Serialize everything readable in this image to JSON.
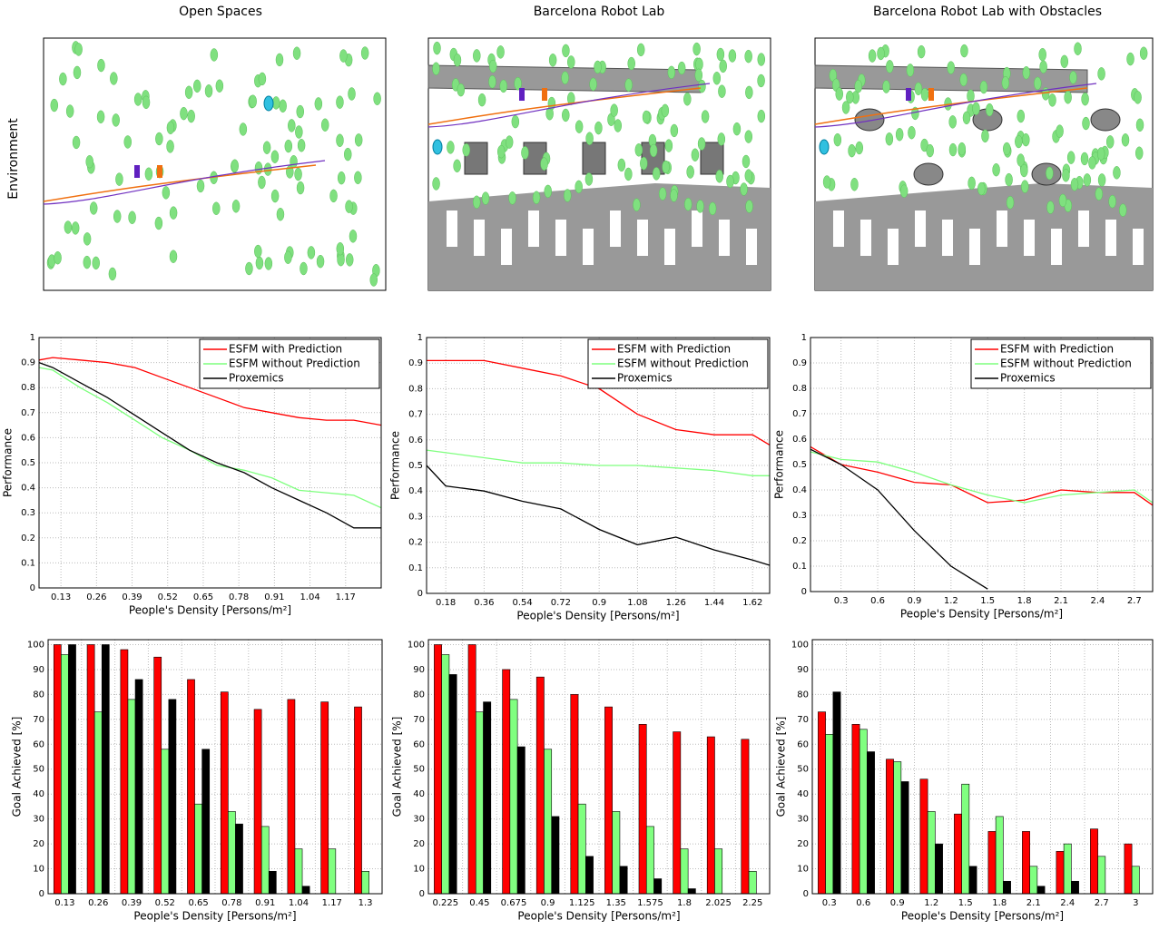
{
  "figure": {
    "column_titles": [
      "Open Spaces",
      "Barcelona Robot Lab",
      "Barcelona Robot Lab with Obstacles"
    ],
    "row_label": "Environment"
  },
  "chart_data": [
    {
      "type": "line",
      "xlabel": "People's Density [Persons/m²]",
      "ylabel": "Performance",
      "x": [
        0.05,
        0.1,
        0.2,
        0.3,
        0.4,
        0.5,
        0.6,
        0.7,
        0.8,
        0.9,
        1.0,
        1.1,
        1.2,
        1.3
      ],
      "series": [
        {
          "name": "ESFM with Prediction",
          "color": "#ff0000",
          "values": [
            0.91,
            0.92,
            0.91,
            0.9,
            0.88,
            0.84,
            0.8,
            0.76,
            0.72,
            0.7,
            0.68,
            0.67,
            0.67,
            0.65
          ]
        },
        {
          "name": "ESFM without Prediction",
          "color": "#7fff7f",
          "values": [
            0.88,
            0.87,
            0.8,
            0.74,
            0.67,
            0.6,
            0.55,
            0.49,
            0.47,
            0.44,
            0.39,
            0.38,
            0.37,
            0.32
          ]
        },
        {
          "name": "Proxemics",
          "color": "#000000",
          "values": [
            0.9,
            0.88,
            0.82,
            0.76,
            0.69,
            0.62,
            0.55,
            0.5,
            0.46,
            0.4,
            0.35,
            0.3,
            0.24,
            0.24
          ]
        }
      ],
      "xlim": [
        0.05,
        1.3
      ],
      "ylim": [
        0,
        1
      ],
      "xticks": [
        0.13,
        0.26,
        0.39,
        0.52,
        0.65,
        0.78,
        0.91,
        1.04,
        1.17
      ],
      "yticks": [
        0,
        0.1,
        0.2,
        0.3,
        0.4,
        0.5,
        0.6,
        0.7,
        0.8,
        0.9,
        1
      ],
      "grid": true,
      "legend": "upper right"
    },
    {
      "type": "line",
      "xlabel": "People's Density [Persons/m²]",
      "ylabel": "Performance",
      "x": [
        0.09,
        0.18,
        0.36,
        0.54,
        0.72,
        0.9,
        1.08,
        1.26,
        1.44,
        1.62,
        1.7
      ],
      "series": [
        {
          "name": "ESFM with Prediction",
          "color": "#ff0000",
          "values": [
            0.91,
            0.91,
            0.91,
            0.88,
            0.85,
            0.8,
            0.7,
            0.64,
            0.62,
            0.62,
            0.58
          ]
        },
        {
          "name": "ESFM without Prediction",
          "color": "#7fff7f",
          "values": [
            0.56,
            0.55,
            0.53,
            0.51,
            0.51,
            0.5,
            0.5,
            0.49,
            0.48,
            0.46,
            0.46
          ]
        },
        {
          "name": "Proxemics",
          "color": "#000000",
          "values": [
            0.5,
            0.42,
            0.4,
            0.36,
            0.33,
            0.25,
            0.19,
            0.22,
            0.17,
            0.13,
            0.11
          ]
        }
      ],
      "xlim": [
        0.09,
        1.7
      ],
      "ylim": [
        0,
        1
      ],
      "xticks": [
        0.18,
        0.36,
        0.54,
        0.72,
        0.9,
        1.08,
        1.26,
        1.44,
        1.62
      ],
      "yticks": [
        0,
        0.1,
        0.2,
        0.3,
        0.4,
        0.5,
        0.6,
        0.7,
        0.8,
        0.9,
        1
      ],
      "grid": true,
      "legend": "upper right"
    },
    {
      "type": "line",
      "xlabel": "People's Density [Persons/m²]",
      "ylabel": "Performance",
      "x": [
        0.05,
        0.3,
        0.6,
        0.9,
        1.2,
        1.5,
        1.8,
        2.1,
        2.4,
        2.7,
        2.85
      ],
      "series": [
        {
          "name": "ESFM with Prediction",
          "color": "#ff0000",
          "values": [
            0.57,
            0.5,
            0.47,
            0.43,
            0.42,
            0.35,
            0.36,
            0.4,
            0.39,
            0.39,
            0.34
          ]
        },
        {
          "name": "ESFM without Prediction",
          "color": "#7fff7f",
          "values": [
            0.55,
            0.52,
            0.51,
            0.47,
            0.42,
            0.38,
            0.35,
            0.38,
            0.39,
            0.4,
            0.35
          ]
        },
        {
          "name": "Proxemics",
          "color": "#000000",
          "values": [
            0.56,
            0.5,
            0.4,
            0.24,
            0.1,
            0.01,
            null,
            null,
            null,
            null,
            null
          ]
        }
      ],
      "xlim": [
        0.05,
        2.85
      ],
      "ylim": [
        0,
        1
      ],
      "xticks": [
        0.3,
        0.6,
        0.9,
        1.2,
        1.5,
        1.8,
        2.1,
        2.4,
        2.7
      ],
      "yticks": [
        0,
        0.1,
        0.2,
        0.3,
        0.4,
        0.5,
        0.6,
        0.7,
        0.8,
        0.9,
        1
      ],
      "grid": true,
      "legend": "upper right"
    },
    {
      "type": "bar",
      "xlabel": "People's Density [Persons/m²]",
      "ylabel": "Goal Achieved [%]",
      "categories": [
        "0.13",
        "0.26",
        "0.39",
        "0.52",
        "0.65",
        "0.78",
        "0.91",
        "1.04",
        "1.17",
        "1.3"
      ],
      "series": [
        {
          "name": "ESFM with Prediction",
          "color": "#ff0000",
          "values": [
            100,
            100,
            98,
            95,
            86,
            81,
            74,
            78,
            77,
            75
          ]
        },
        {
          "name": "ESFM without Prediction",
          "color": "#80ff80",
          "values": [
            96,
            73,
            78,
            58,
            36,
            33,
            27,
            18,
            18,
            9
          ]
        },
        {
          "name": "Proxemics",
          "color": "#000000",
          "values": [
            100,
            100,
            86,
            78,
            58,
            28,
            9,
            3,
            0,
            0
          ]
        }
      ],
      "ylim": [
        0,
        102
      ],
      "yticks": [
        0,
        10,
        20,
        30,
        40,
        50,
        60,
        70,
        80,
        90,
        100
      ],
      "grid": true
    },
    {
      "type": "bar",
      "xlabel": "People's Density [Persons/m²]",
      "ylabel": "Goal Achieved [%]",
      "categories": [
        "0.225",
        "0.45",
        "0.675",
        "0.9",
        "1.125",
        "1.35",
        "1.575",
        "1.8",
        "2.025",
        "2.25"
      ],
      "series": [
        {
          "name": "ESFM with Prediction",
          "color": "#ff0000",
          "values": [
            100,
            100,
            90,
            87,
            80,
            75,
            68,
            65,
            63,
            62
          ]
        },
        {
          "name": "ESFM without Prediction",
          "color": "#80ff80",
          "values": [
            96,
            73,
            78,
            58,
            36,
            33,
            27,
            18,
            18,
            9
          ]
        },
        {
          "name": "Proxemics",
          "color": "#000000",
          "values": [
            88,
            77,
            59,
            31,
            15,
            11,
            6,
            2,
            0,
            0
          ]
        }
      ],
      "ylim": [
        0,
        102
      ],
      "yticks": [
        0,
        10,
        20,
        30,
        40,
        50,
        60,
        70,
        80,
        90,
        100
      ],
      "grid": true
    },
    {
      "type": "bar",
      "xlabel": "People's Density [Persons/m²]",
      "ylabel": "Goal Achieved [%]",
      "categories": [
        "0.3",
        "0.6",
        "0.9",
        "1.2",
        "1.5",
        "1.8",
        "2.1",
        "2.4",
        "2.7",
        "3"
      ],
      "series": [
        {
          "name": "ESFM with Prediction",
          "color": "#ff0000",
          "values": [
            73,
            68,
            54,
            46,
            32,
            25,
            25,
            17,
            26,
            20
          ]
        },
        {
          "name": "ESFM without Prediction",
          "color": "#80ff80",
          "values": [
            64,
            66,
            53,
            33,
            44,
            31,
            11,
            20,
            15,
            11
          ]
        },
        {
          "name": "Proxemics",
          "color": "#000000",
          "values": [
            81,
            57,
            45,
            20,
            11,
            5,
            3,
            5,
            0,
            0
          ]
        }
      ],
      "ylim": [
        0,
        102
      ],
      "yticks": [
        0,
        10,
        20,
        30,
        40,
        50,
        60,
        70,
        80,
        90,
        100
      ],
      "grid": true
    }
  ]
}
